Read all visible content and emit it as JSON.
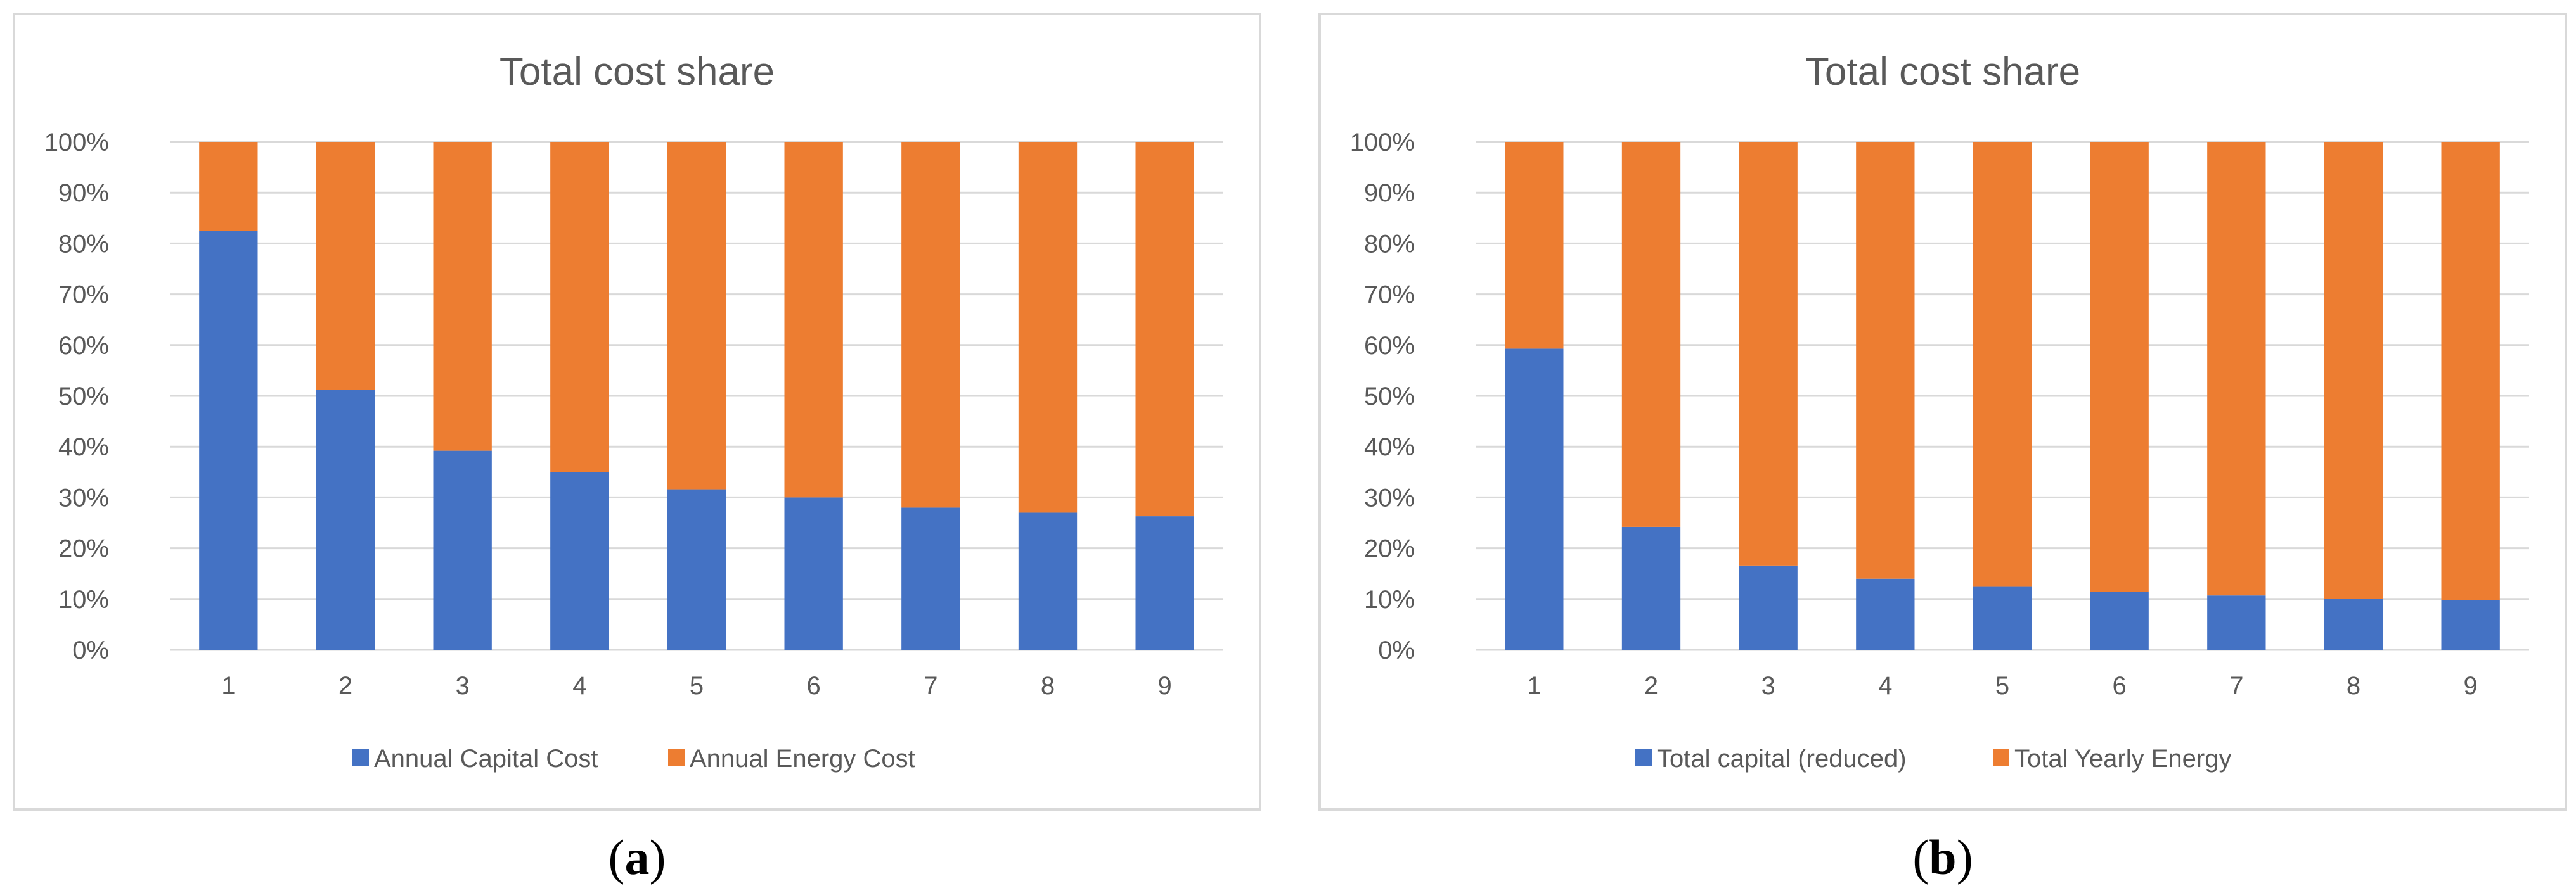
{
  "colors": {
    "capital": "#4472C4",
    "energy": "#ED7D31",
    "grid": "#D9D9D9",
    "frame": "#D9D9D9",
    "text": "#595959"
  },
  "chart_data": [
    {
      "type": "bar",
      "stacking": "percent",
      "title": "Total cost share",
      "panel_label": "a",
      "categories": [
        "1",
        "2",
        "3",
        "4",
        "5",
        "6",
        "7",
        "8",
        "9"
      ],
      "ylim": [
        0,
        100
      ],
      "y_ticks": [
        "0%",
        "10%",
        "20%",
        "30%",
        "40%",
        "50%",
        "60%",
        "70%",
        "80%",
        "90%",
        "100%"
      ],
      "grid": true,
      "legend_position": "bottom",
      "series": [
        {
          "name": "Annual Capital Cost",
          "color": "#4472C4",
          "values": [
            82.5,
            51.2,
            39.2,
            35.0,
            31.6,
            30.0,
            28.0,
            27.0,
            26.3
          ]
        },
        {
          "name": "Annual Energy Cost",
          "color": "#ED7D31",
          "values": [
            17.5,
            48.8,
            60.8,
            65.0,
            68.4,
            70.0,
            72.0,
            73.0,
            73.7
          ]
        }
      ]
    },
    {
      "type": "bar",
      "stacking": "percent",
      "title": "Total cost share",
      "panel_label": "b",
      "categories": [
        "1",
        "2",
        "3",
        "4",
        "5",
        "6",
        "7",
        "8",
        "9"
      ],
      "ylim": [
        0,
        100
      ],
      "y_ticks": [
        "0%",
        "10%",
        "20%",
        "30%",
        "40%",
        "50%",
        "60%",
        "70%",
        "80%",
        "90%",
        "100%"
      ],
      "grid": true,
      "legend_position": "bottom",
      "series": [
        {
          "name": "Total capital (reduced)",
          "color": "#4472C4",
          "values": [
            59.3,
            24.2,
            16.6,
            14.0,
            12.4,
            11.4,
            10.7,
            10.1,
            9.8
          ]
        },
        {
          "name": "Total Yearly Energy",
          "color": "#ED7D31",
          "values": [
            40.7,
            75.8,
            83.4,
            86.0,
            87.6,
            88.6,
            89.3,
            89.9,
            90.2
          ]
        }
      ]
    }
  ]
}
